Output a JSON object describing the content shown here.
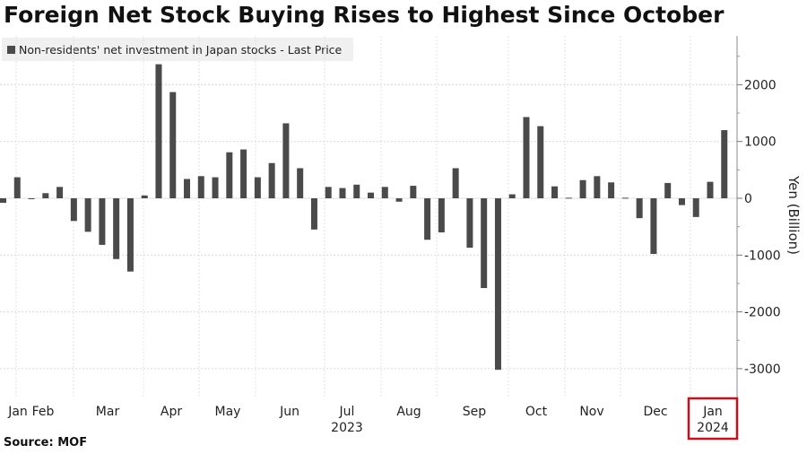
{
  "chart_data": {
    "type": "bar",
    "title": "Foreign Net Stock Buying Rises to Highest Since October",
    "legend": [
      "Non-residents' net investment in Japan stocks - Last Price"
    ],
    "legend_position": "top-left",
    "xlabel": "",
    "ylabel": "Yen (Billion)",
    "ylim": [
      -3500,
      2900
    ],
    "yticks": [
      2000,
      1000,
      0,
      -1000,
      -2000,
      -3000
    ],
    "grid": true,
    "x_tick_labels": [
      {
        "label": "Jan",
        "sub": ""
      },
      {
        "label": "Feb",
        "sub": ""
      },
      {
        "label": "Mar",
        "sub": ""
      },
      {
        "label": "Apr",
        "sub": ""
      },
      {
        "label": "May",
        "sub": ""
      },
      {
        "label": "Jun",
        "sub": ""
      },
      {
        "label": "Jul",
        "sub": "2023"
      },
      {
        "label": "Aug",
        "sub": ""
      },
      {
        "label": "Sep",
        "sub": ""
      },
      {
        "label": "Oct",
        "sub": ""
      },
      {
        "label": "Nov",
        "sub": ""
      },
      {
        "label": "Dec",
        "sub": ""
      },
      {
        "label": "Jan",
        "sub": "2024",
        "highlighted": true
      }
    ],
    "series": [
      {
        "name": "Non-residents' net investment in Japan stocks - Last Price",
        "color": "#4a4a4a",
        "values": [
          -80,
          370,
          -10,
          90,
          200,
          -400,
          -590,
          -820,
          -1070,
          -1290,
          50,
          2360,
          1870,
          340,
          390,
          370,
          810,
          860,
          370,
          620,
          1320,
          530,
          -550,
          200,
          180,
          240,
          100,
          200,
          -60,
          220,
          -730,
          -600,
          530,
          -870,
          -1580,
          -3020,
          70,
          1430,
          1270,
          210,
          10,
          320,
          390,
          280,
          10,
          -350,
          -980,
          270,
          -120,
          -330,
          290,
          1200
        ]
      }
    ]
  },
  "source": "Source: MOF",
  "highlight_color": "#c8101a"
}
